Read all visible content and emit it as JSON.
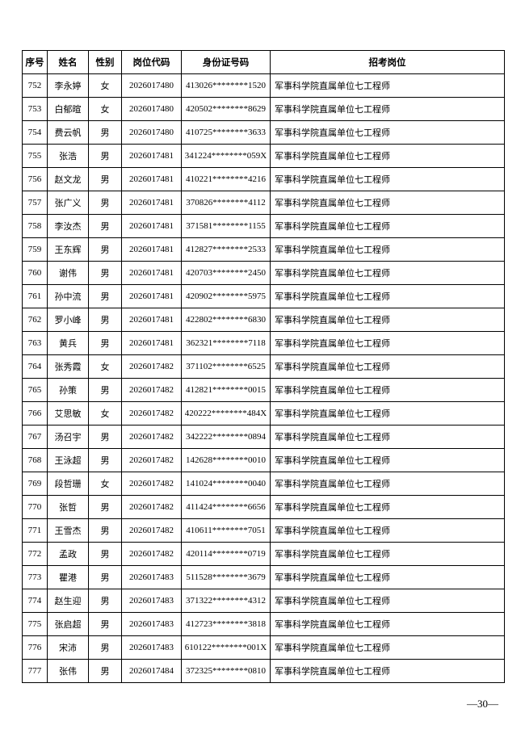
{
  "table": {
    "header": [
      "序号",
      "姓名",
      "性别",
      "岗位代码",
      "身份证号码",
      "招考岗位"
    ],
    "rows": [
      [
        "752",
        "李永婷",
        "女",
        "2026017480",
        "413026********1520",
        "军事科学院直属单位七工程师"
      ],
      [
        "753",
        "白郁暄",
        "女",
        "2026017480",
        "420502********8629",
        "军事科学院直属单位七工程师"
      ],
      [
        "754",
        "费云帆",
        "男",
        "2026017480",
        "410725********3633",
        "军事科学院直属单位七工程师"
      ],
      [
        "755",
        "张浩",
        "男",
        "2026017481",
        "341224********059X",
        "军事科学院直属单位七工程师"
      ],
      [
        "756",
        "赵文龙",
        "男",
        "2026017481",
        "410221********4216",
        "军事科学院直属单位七工程师"
      ],
      [
        "757",
        "张广义",
        "男",
        "2026017481",
        "370826********4112",
        "军事科学院直属单位七工程师"
      ],
      [
        "758",
        "李汝杰",
        "男",
        "2026017481",
        "371581********1155",
        "军事科学院直属单位七工程师"
      ],
      [
        "759",
        "王东辉",
        "男",
        "2026017481",
        "412827********2533",
        "军事科学院直属单位七工程师"
      ],
      [
        "760",
        "谢伟",
        "男",
        "2026017481",
        "420703********2450",
        "军事科学院直属单位七工程师"
      ],
      [
        "761",
        "孙中流",
        "男",
        "2026017481",
        "420902********5975",
        "军事科学院直属单位七工程师"
      ],
      [
        "762",
        "罗小峰",
        "男",
        "2026017481",
        "422802********6830",
        "军事科学院直属单位七工程师"
      ],
      [
        "763",
        "黄兵",
        "男",
        "2026017481",
        "362321********7118",
        "军事科学院直属单位七工程师"
      ],
      [
        "764",
        "张秀霞",
        "女",
        "2026017482",
        "371102********6525",
        "军事科学院直属单位七工程师"
      ],
      [
        "765",
        "孙策",
        "男",
        "2026017482",
        "412821********0015",
        "军事科学院直属单位七工程师"
      ],
      [
        "766",
        "艾思敏",
        "女",
        "2026017482",
        "420222********484X",
        "军事科学院直属单位七工程师"
      ],
      [
        "767",
        "汤召宇",
        "男",
        "2026017482",
        "342222********0894",
        "军事科学院直属单位七工程师"
      ],
      [
        "768",
        "王泳超",
        "男",
        "2026017482",
        "142628********0010",
        "军事科学院直属单位七工程师"
      ],
      [
        "769",
        "段哲珊",
        "女",
        "2026017482",
        "141024********0040",
        "军事科学院直属单位七工程师"
      ],
      [
        "770",
        "张哲",
        "男",
        "2026017482",
        "411424********6656",
        "军事科学院直属单位七工程师"
      ],
      [
        "771",
        "王雪杰",
        "男",
        "2026017482",
        "410611********7051",
        "军事科学院直属单位七工程师"
      ],
      [
        "772",
        "孟政",
        "男",
        "2026017482",
        "420114********0719",
        "军事科学院直属单位七工程师"
      ],
      [
        "773",
        "瞿港",
        "男",
        "2026017483",
        "511528********3679",
        "军事科学院直属单位七工程师"
      ],
      [
        "774",
        "赵生迎",
        "男",
        "2026017483",
        "371322********4312",
        "军事科学院直属单位七工程师"
      ],
      [
        "775",
        "张启超",
        "男",
        "2026017483",
        "412723********3818",
        "军事科学院直属单位七工程师"
      ],
      [
        "776",
        "宋沛",
        "男",
        "2026017483",
        "610122********001X",
        "军事科学院直属单位七工程师"
      ],
      [
        "777",
        "张伟",
        "男",
        "2026017484",
        "372325********0810",
        "军事科学院直属单位七工程师"
      ]
    ]
  },
  "footer": {
    "page_number": "—30—"
  }
}
